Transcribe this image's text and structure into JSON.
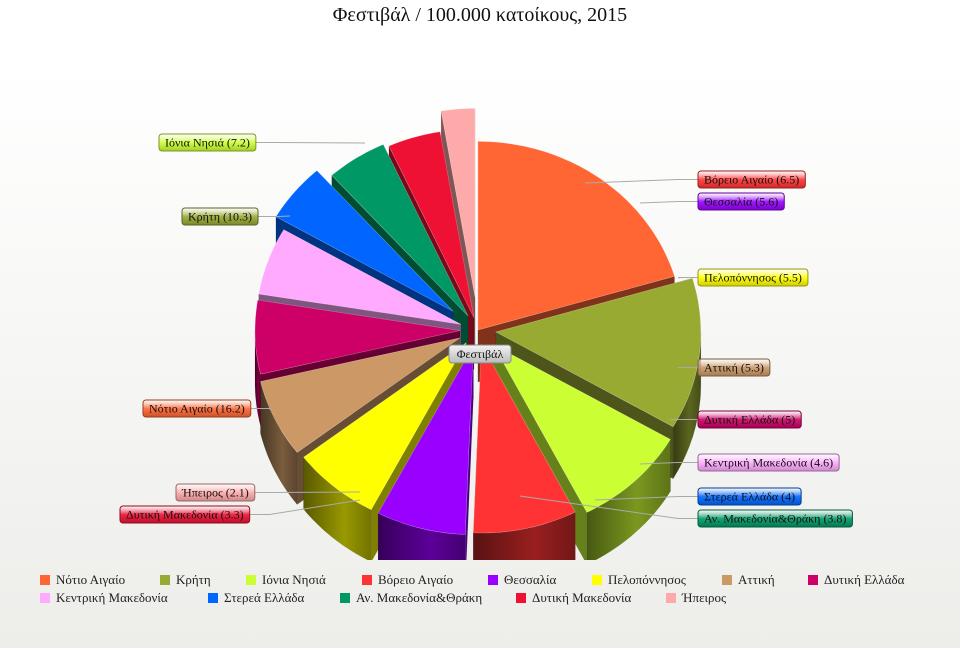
{
  "chart_data": {
    "type": "pie",
    "title": "Φεστιβάλ / 100.000 κατοίκους, 2015",
    "series_label": "Φεστιβάλ",
    "slices": [
      {
        "label": "Νότιο Αιγαίο",
        "value": 16.2,
        "display": "16.2",
        "color": "#ff6633"
      },
      {
        "label": "Κρήτη",
        "value": 10.3,
        "display": "10.3",
        "color": "#99aa33"
      },
      {
        "label": "Ιόνια Νησιά",
        "value": 7.2,
        "display": "7.2",
        "color": "#ccff33"
      },
      {
        "label": "Βόρειο Αιγαίο",
        "value": 6.5,
        "display": "6.5",
        "color": "#ff3333"
      },
      {
        "label": "Θεσσαλία",
        "value": 5.6,
        "display": "5.6",
        "color": "#9900ff"
      },
      {
        "label": "Πελοπόννησος",
        "value": 5.5,
        "display": "5.5",
        "color": "#ffff00"
      },
      {
        "label": "Αττική",
        "value": 5.3,
        "display": "5.3",
        "color": "#cc9966"
      },
      {
        "label": "Δυτική Ελλάδα",
        "value": 5,
        "display": "5",
        "color": "#cc0066"
      },
      {
        "label": "Κεντρική Μακεδονία",
        "value": 4.6,
        "display": "4.6",
        "color": "#ffaaff"
      },
      {
        "label": "Στερεά Ελλάδα",
        "value": 4,
        "display": "4",
        "color": "#0066ff"
      },
      {
        "label": "Αν. Μακεδονία&Θράκη",
        "value": 3.8,
        "display": "3.8",
        "color": "#009966"
      },
      {
        "label": "Δυτική Μακεδονία",
        "value": 3.3,
        "display": "3.3",
        "color": "#ee1133"
      },
      {
        "label": "Ήπειρος",
        "value": 2.1,
        "display": "2.1",
        "color": "#ffaaaa"
      }
    ],
    "legend_position": "bottom"
  }
}
